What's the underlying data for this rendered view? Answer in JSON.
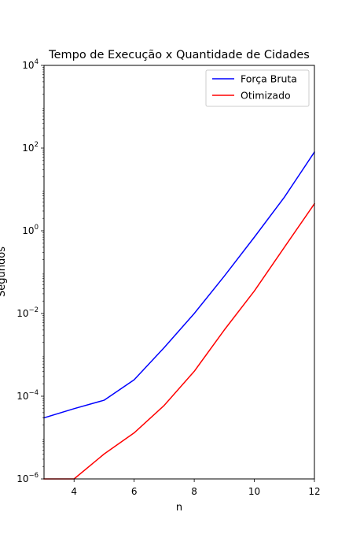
{
  "chart_data": {
    "type": "line",
    "title": "Tempo de Execução x Quantidade de Cidades",
    "xlabel": "n",
    "ylabel": "Segundos",
    "yscale": "log",
    "xlim": [
      3,
      12
    ],
    "ylim": [
      1e-06,
      10000
    ],
    "xticks": [
      4,
      6,
      8,
      10,
      12
    ],
    "yticks": [
      {
        "value": 1e-06,
        "base": "10",
        "exp": "−6"
      },
      {
        "value": 0.0001,
        "base": "10",
        "exp": "−4"
      },
      {
        "value": 0.01,
        "base": "10",
        "exp": "−2"
      },
      {
        "value": 1,
        "base": "10",
        "exp": "0"
      },
      {
        "value": 100,
        "base": "10",
        "exp": "2"
      },
      {
        "value": 10000,
        "base": "10",
        "exp": "4"
      }
    ],
    "grid": false,
    "legend_position": "top-right",
    "x": [
      3,
      4,
      5,
      6,
      7,
      8,
      9,
      10,
      11,
      12
    ],
    "series": [
      {
        "name": "Força Bruta",
        "color": "#0000ff",
        "values": [
          3e-05,
          5e-05,
          8e-05,
          0.00025,
          0.0015,
          0.01,
          0.08,
          0.7,
          6.5,
          80
        ]
      },
      {
        "name": "Otimizado",
        "color": "#ff0000",
        "values": [
          1e-06,
          1e-06,
          4e-06,
          1.3e-05,
          6e-05,
          0.0004,
          0.004,
          0.035,
          0.4,
          4.5
        ]
      }
    ]
  }
}
